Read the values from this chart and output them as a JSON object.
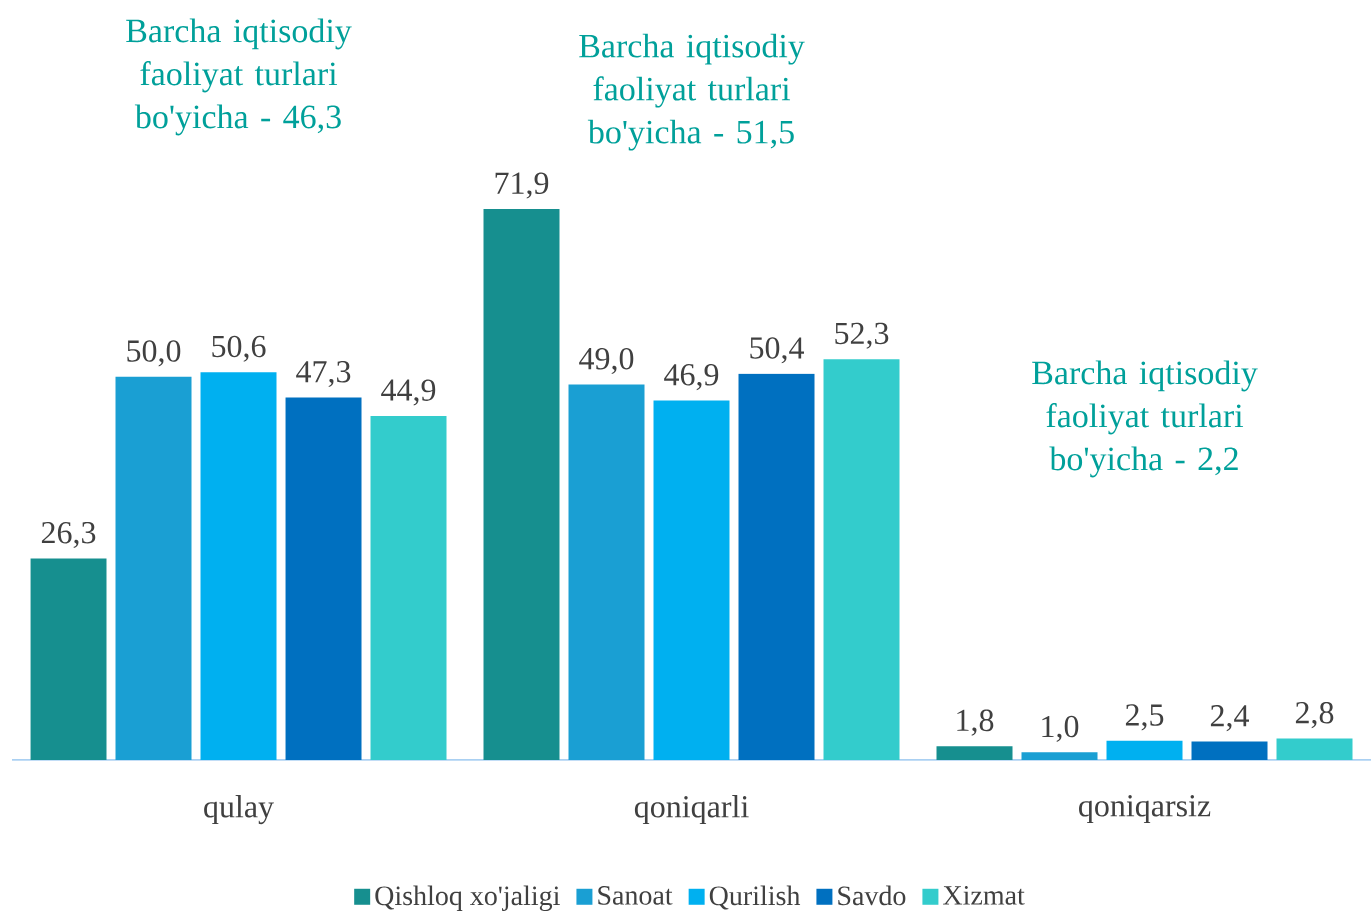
{
  "chart_data": {
    "type": "bar",
    "categories": [
      "qulay",
      "qoniqarli",
      "qoniqarsiz"
    ],
    "series": [
      {
        "name": "Qishloq xo'jaligi",
        "color": "#168F8F",
        "values": [
          26.3,
          71.9,
          1.8
        ],
        "value_labels": [
          "26,3",
          "71,9",
          "1,8"
        ]
      },
      {
        "name": "Sanoat",
        "color": "#1A9FD3",
        "values": [
          50.0,
          49.0,
          1.0
        ],
        "value_labels": [
          "50,0",
          "49,0",
          "1,0"
        ]
      },
      {
        "name": "Qurilish",
        "color": "#00B0F0",
        "values": [
          50.6,
          46.9,
          2.5
        ],
        "value_labels": [
          "50,6",
          "46,9",
          "2,5"
        ]
      },
      {
        "name": "Savdo",
        "color": "#0070C0",
        "values": [
          47.3,
          50.4,
          2.4
        ],
        "value_labels": [
          "47,3",
          "50,4",
          "2,4"
        ]
      },
      {
        "name": "Xizmat",
        "color": "#33CCCC",
        "values": [
          44.9,
          52.3,
          2.8
        ],
        "value_labels": [
          "44,9",
          "52,3",
          "2,8"
        ]
      }
    ],
    "annotations": [
      "Barcha iqtisodiy faoliyat turlari bo'yicha - 46,3",
      "Barcha iqtisodiy faoliyat turlari bo'yicha - 51,5",
      "Barcha iqtisodiy faoliyat turlari bo'yicha - 2,2"
    ],
    "legend": "bottom"
  }
}
